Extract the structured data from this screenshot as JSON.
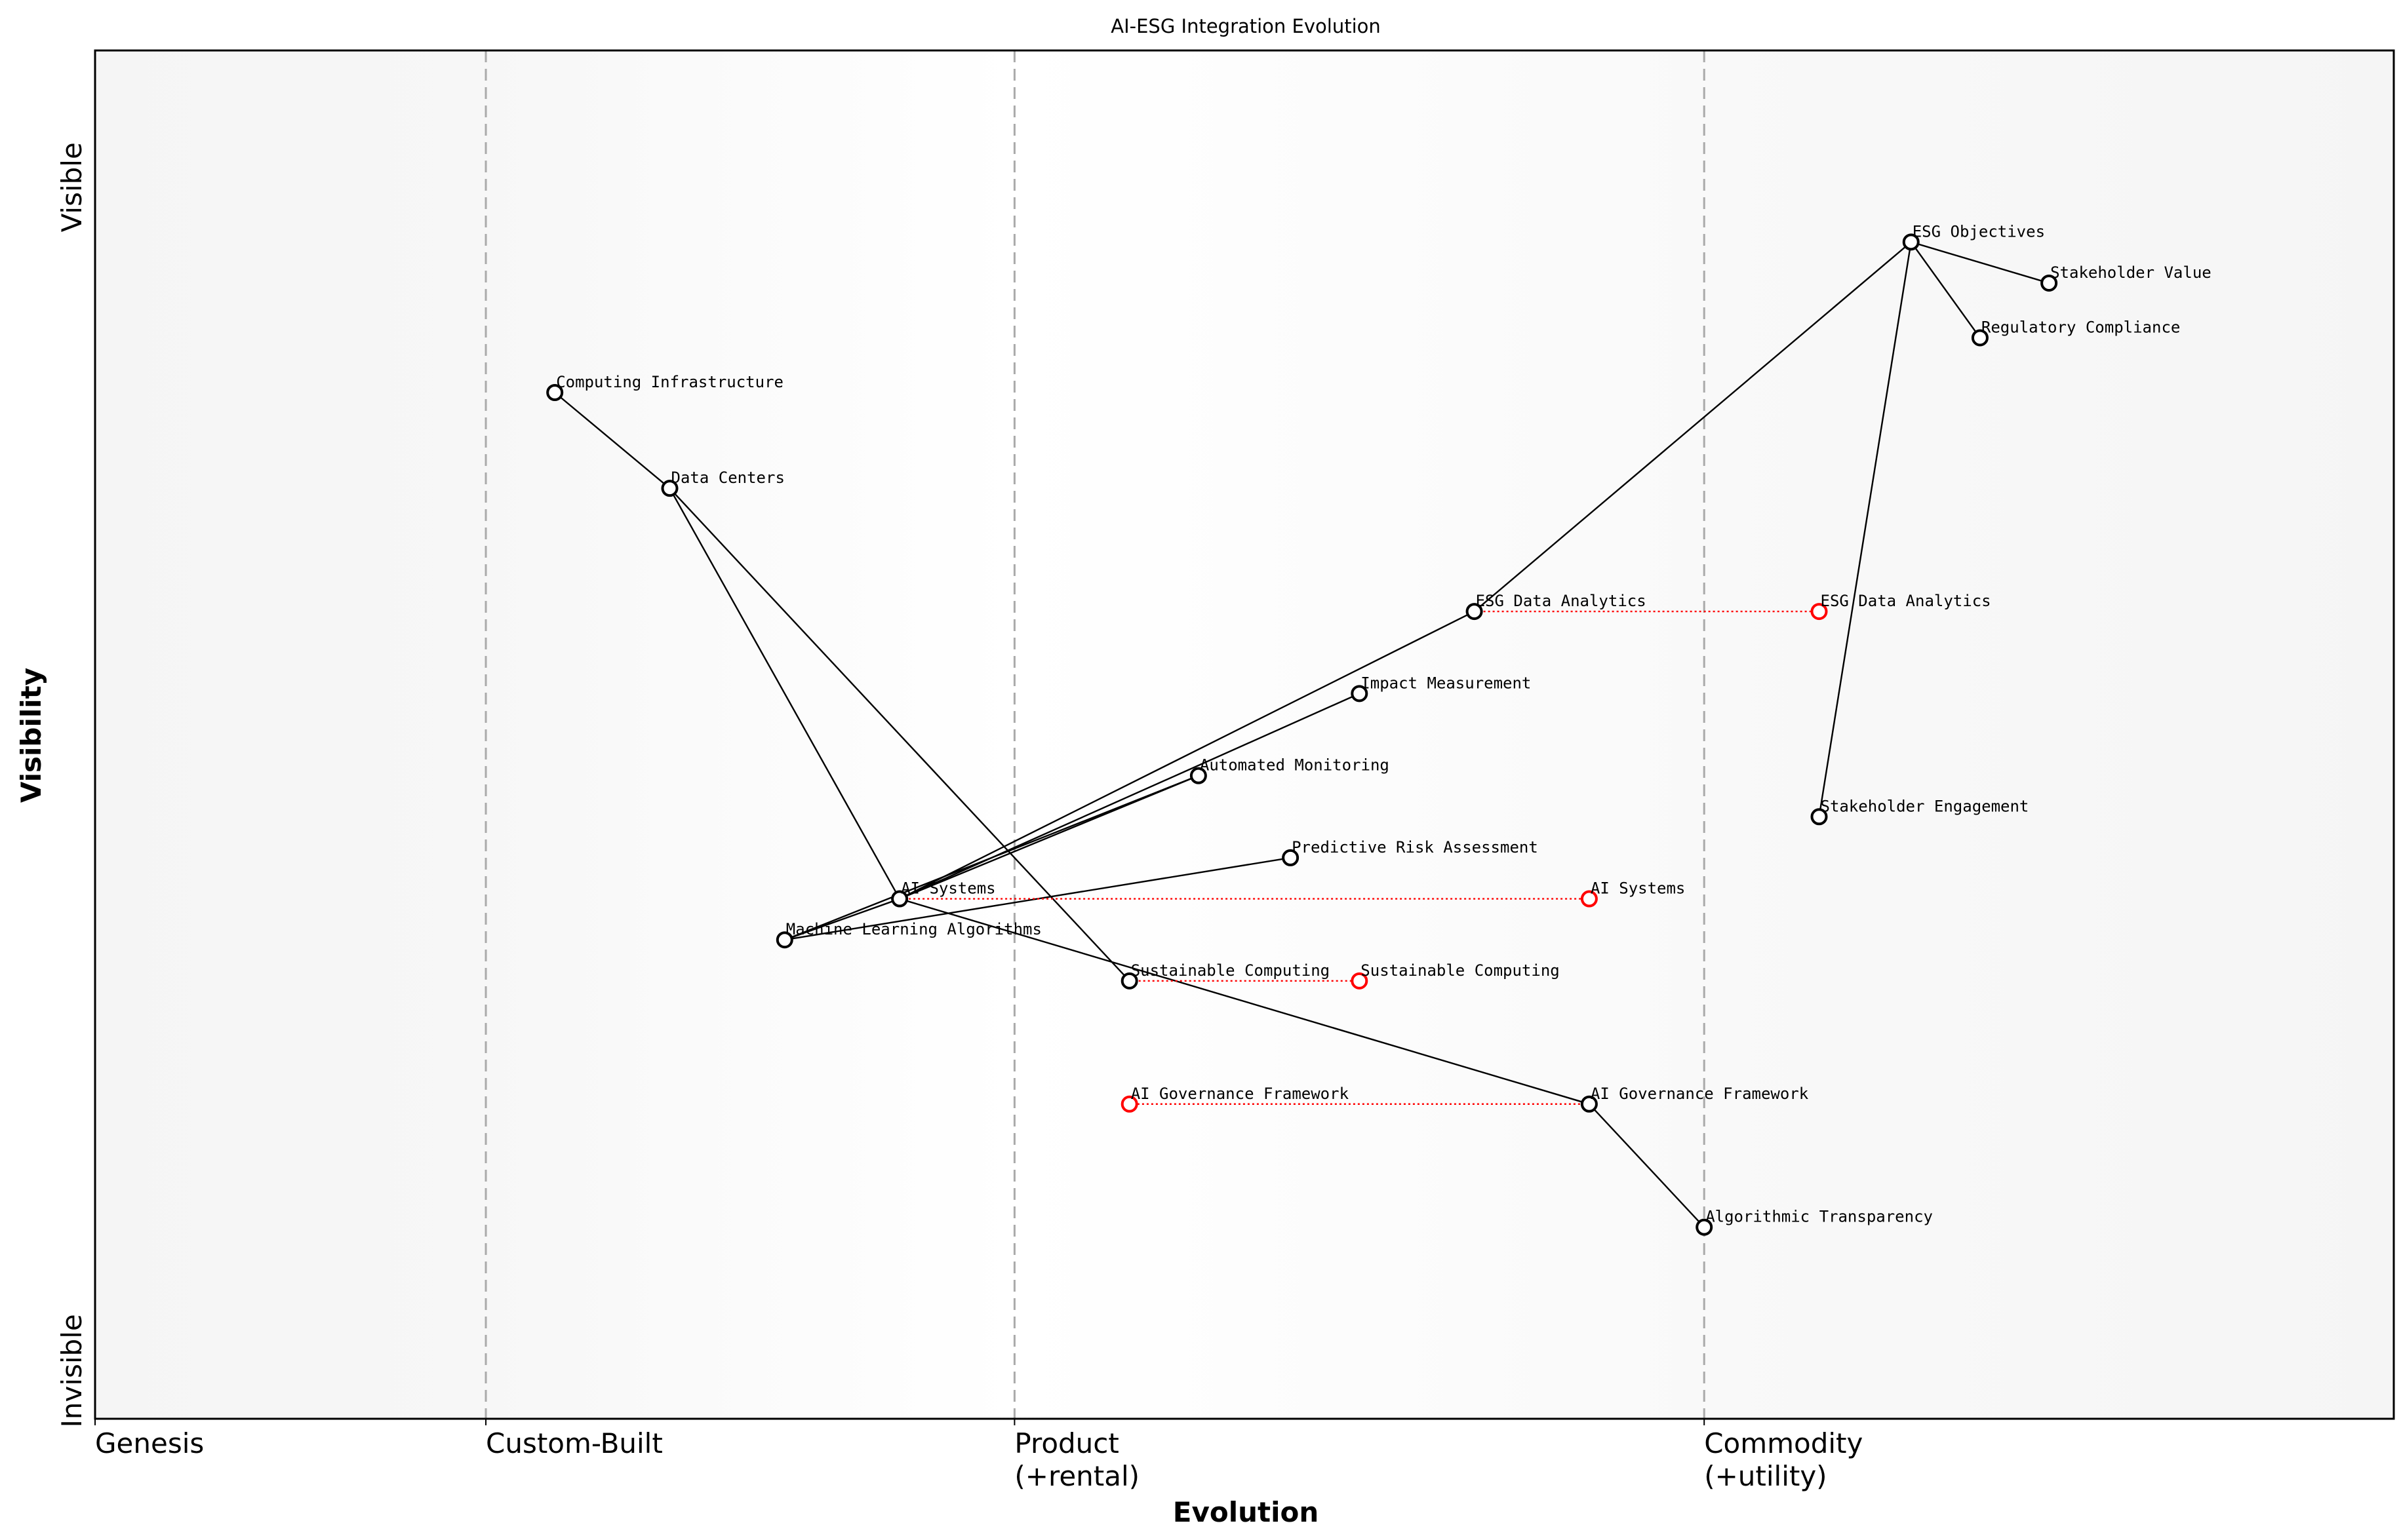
{
  "chart_data": {
    "type": "scatter",
    "subtype": "wardley-map",
    "title": "AI-ESG Integration Evolution",
    "xlabel": "Evolution",
    "ylabel": "Visibility",
    "xlim": [
      0,
      1
    ],
    "ylim": [
      0,
      1
    ],
    "grid": false,
    "y_ticks": [
      {
        "label": "Invisible",
        "value": 0
      },
      {
        "label": "Visible",
        "value": 1
      }
    ],
    "stages": [
      {
        "label": "Genesis",
        "value": 0
      },
      {
        "label": "Custom-Built",
        "value": 0.17
      },
      {
        "label": "Product\n(+rental)",
        "value": 0.4
      },
      {
        "label": "Commodity\n(+utility)",
        "value": 0.7
      }
    ],
    "components": [
      {
        "id": "esg_obj",
        "name": "ESG Objectives",
        "x": 0.79,
        "y": 0.86
      },
      {
        "id": "stake_val",
        "name": "Stakeholder Value",
        "x": 0.85,
        "y": 0.83
      },
      {
        "id": "reg_comp",
        "name": "Regulatory Compliance",
        "x": 0.82,
        "y": 0.79
      },
      {
        "id": "comp_inf",
        "name": "Computing Infrastructure",
        "x": 0.2,
        "y": 0.75
      },
      {
        "id": "data_ctr",
        "name": "Data Centers",
        "x": 0.25,
        "y": 0.68
      },
      {
        "id": "esg_da",
        "name": "ESG Data Analytics",
        "x": 0.6,
        "y": 0.59
      },
      {
        "id": "impact",
        "name": "Impact Measurement",
        "x": 0.55,
        "y": 0.53
      },
      {
        "id": "auto_mon",
        "name": "Automated Monitoring",
        "x": 0.48,
        "y": 0.47
      },
      {
        "id": "stake_eng",
        "name": "Stakeholder Engagement",
        "x": 0.75,
        "y": 0.44
      },
      {
        "id": "pred_risk",
        "name": "Predictive Risk Assessment",
        "x": 0.52,
        "y": 0.41
      },
      {
        "id": "ai_sys",
        "name": "AI Systems",
        "x": 0.35,
        "y": 0.38
      },
      {
        "id": "ml",
        "name": "Machine Learning Algorithms",
        "x": 0.3,
        "y": 0.35
      },
      {
        "id": "sust_comp",
        "name": "Sustainable Computing",
        "x": 0.45,
        "y": 0.32
      },
      {
        "id": "ai_gov",
        "name": "AI Governance Framework",
        "x": 0.65,
        "y": 0.23
      },
      {
        "id": "alg_trans",
        "name": "Algorithmic Transparency",
        "x": 0.7,
        "y": 0.14
      }
    ],
    "links": [
      [
        "esg_obj",
        "stake_val"
      ],
      [
        "esg_obj",
        "reg_comp"
      ],
      [
        "esg_obj",
        "esg_da"
      ],
      [
        "esg_obj",
        "stake_eng"
      ],
      [
        "comp_inf",
        "data_ctr"
      ],
      [
        "data_ctr",
        "ai_sys"
      ],
      [
        "data_ctr",
        "sust_comp"
      ],
      [
        "ai_sys",
        "esg_da"
      ],
      [
        "ai_sys",
        "impact"
      ],
      [
        "ai_sys",
        "auto_mon"
      ],
      [
        "ai_sys",
        "ai_gov"
      ],
      [
        "ml",
        "ai_sys"
      ],
      [
        "ml",
        "auto_mon"
      ],
      [
        "ml",
        "pred_risk"
      ],
      [
        "ai_gov",
        "alg_trans"
      ]
    ],
    "evolutions": [
      {
        "from": "esg_da",
        "name": "ESG Data Analytics",
        "to_x": 0.75
      },
      {
        "from": "ai_sys",
        "name": "AI Systems",
        "to_x": 0.65
      },
      {
        "from": "sust_comp",
        "name": "Sustainable Computing",
        "to_x": 0.55
      },
      {
        "from": "ai_gov",
        "name": "AI Governance Framework",
        "to_x": 0.45
      }
    ],
    "colors": {
      "component": "#000000",
      "evolved": "#ff0000",
      "stage_line": "#aaaaaa",
      "background_edge": "#f5f5f5"
    }
  }
}
